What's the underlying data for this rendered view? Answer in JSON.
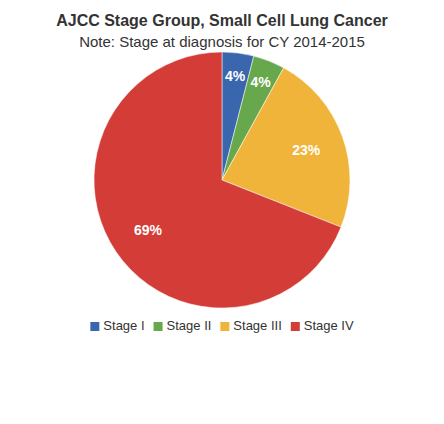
{
  "chart_data": {
    "type": "pie",
    "title": "AJCC Stage Group, Small Cell Lung Cancer",
    "subtitle": "Note: Stage at diagnosis for CY 2014-2015",
    "categories": [
      "Stage I",
      "Stage II",
      "Stage III",
      "Stage IV"
    ],
    "values": [
      4,
      4,
      23,
      69
    ],
    "value_labels": [
      "4%",
      "4%",
      "23%",
      "69%"
    ],
    "colors": [
      "#3a66ad",
      "#67a84d",
      "#f1b43a",
      "#d43c38"
    ],
    "data_labels": true,
    "legend": "bottom"
  }
}
